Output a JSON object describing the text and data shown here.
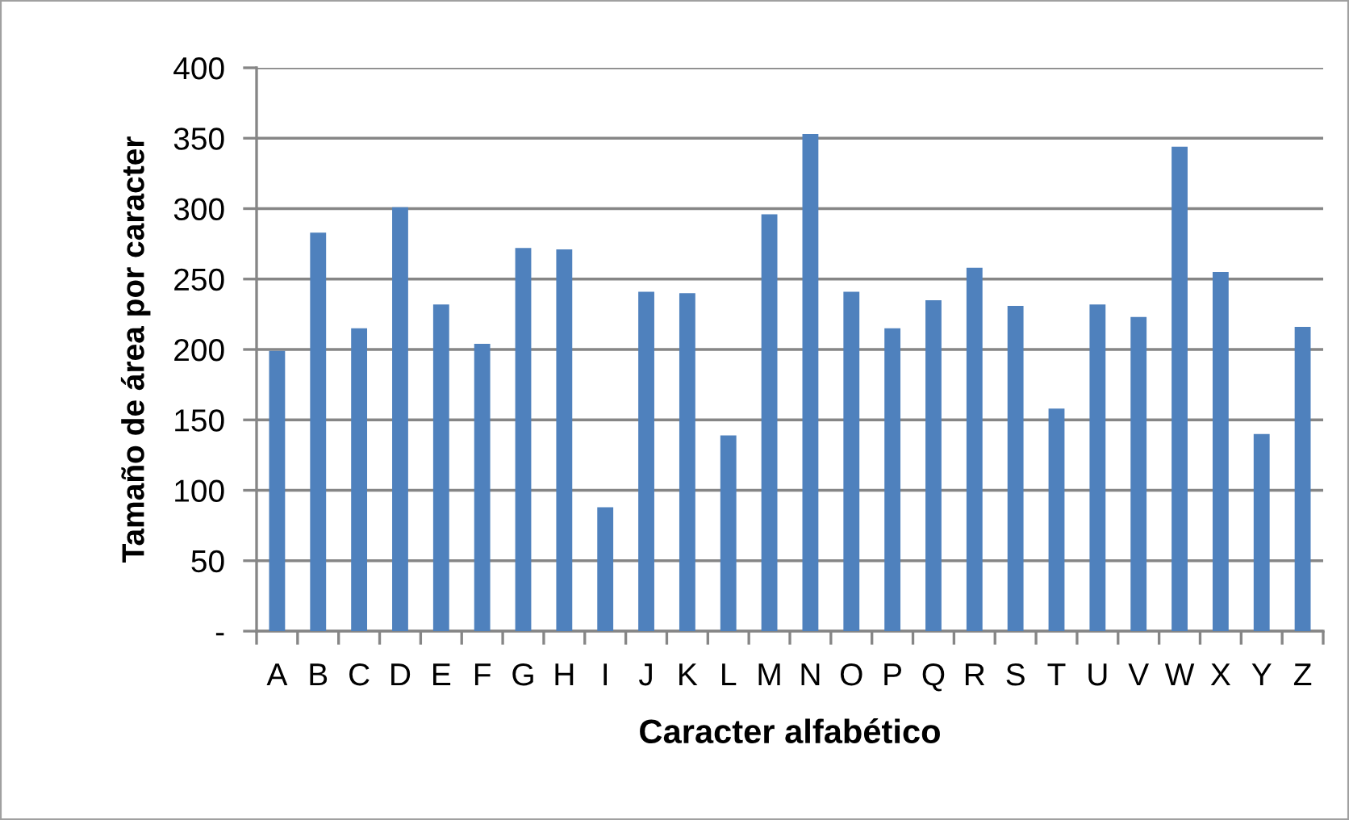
{
  "chart_data": {
    "type": "bar",
    "categories": [
      "A",
      "B",
      "C",
      "D",
      "E",
      "F",
      "G",
      "H",
      "I",
      "J",
      "K",
      "L",
      "M",
      "N",
      "O",
      "P",
      "Q",
      "R",
      "S",
      "T",
      "U",
      "V",
      "W",
      "X",
      "Y",
      "Z"
    ],
    "values": [
      199,
      283,
      215,
      301,
      232,
      204,
      272,
      271,
      88,
      241,
      240,
      139,
      296,
      353,
      241,
      215,
      235,
      258,
      231,
      158,
      232,
      223,
      344,
      255,
      140,
      216
    ],
    "color": "#4f81bd",
    "ylim": [
      0,
      400
    ],
    "yticks": [
      {
        "value": 0,
        "label": "-"
      },
      50,
      100,
      150,
      200,
      250,
      300,
      350,
      400
    ],
    "grid": "y",
    "xlabel": "Caracter alfabético",
    "ylabel": "Tamaño de área por caracter"
  }
}
